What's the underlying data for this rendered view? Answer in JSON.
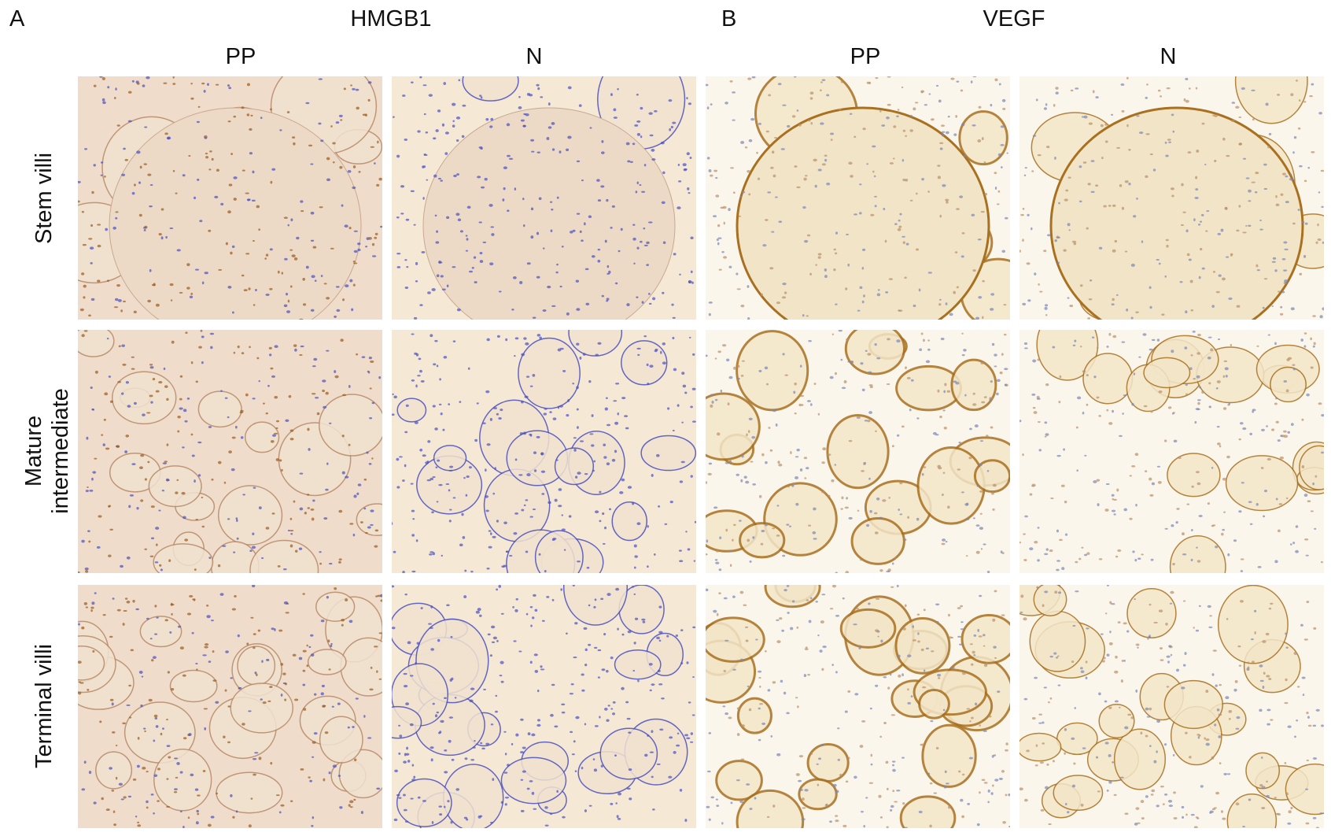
{
  "figure": {
    "panel_a": {
      "letter": "A",
      "title": "HMGB1",
      "columns": [
        "PP",
        "N"
      ]
    },
    "panel_b": {
      "letter": "B",
      "title": "VEGF",
      "columns": [
        "PP",
        "N"
      ]
    },
    "rows": [
      {
        "label": "Stem villi"
      },
      {
        "label_line1": "Mature",
        "label_line2": "intermediate"
      },
      {
        "label": "Terminal villi"
      }
    ],
    "colors": {
      "hmgb1_pp_background": "#efdccb",
      "hmgb1_n_background": "#f5e9d6",
      "vegf_background": "#fbf6ec",
      "hematoxylin_blue": "#4a4fc0",
      "dab_brown": "#9a5a1e",
      "vegf_membrane": "#a8701f"
    }
  }
}
